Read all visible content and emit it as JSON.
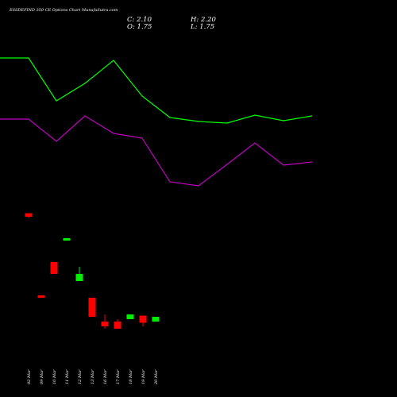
{
  "chart_data": {
    "type": "candlestick",
    "title": "ESSDEFIND 350 CE Options Chart MunafaSutra.com",
    "info": {
      "c": "C: 2.10",
      "h": "H: 2.20",
      "o": "O: 1.75",
      "l": "L: 1.75"
    },
    "dates": [
      "02 Mar",
      "09 Mar",
      "10 Mar",
      "11 Mar",
      "12 Mar",
      "13 Mar",
      "16 Mar",
      "17 Mar",
      "18 Mar",
      "19 Mar",
      "20 Mar"
    ],
    "candles": [
      {
        "open": 20.5,
        "high": 20.5,
        "low": 18.5,
        "close": 19.0
      },
      {
        "open": -14.0,
        "high": -14.0,
        "low": -15.0,
        "close": -15.0
      },
      {
        "open": 0.0,
        "high": 0.0,
        "low": -5.0,
        "close": -5.0
      },
      {
        "open": 9.0,
        "high": 10.0,
        "low": 9.0,
        "close": 10.0
      },
      {
        "open": -8.0,
        "high": -2.0,
        "low": -8.0,
        "close": -5.0
      },
      {
        "open": -15.0,
        "high": -15.0,
        "low": -23.0,
        "close": -23.0
      },
      {
        "open": -25.0,
        "high": -22.0,
        "low": -28.0,
        "close": -27.0
      },
      {
        "open": -25.0,
        "high": -24.0,
        "low": -28.0,
        "close": -28.0
      },
      {
        "open": -24.0,
        "high": -22.0,
        "low": -24.0,
        "close": -22.0
      },
      {
        "open": -22.5,
        "high": -22.5,
        "low": -27.0,
        "close": -25.5
      },
      {
        "open": -25.0,
        "high": -23.0,
        "low": -25.0,
        "close": -23.0
      }
    ],
    "series": [
      {
        "color": "#00ff00",
        "points": [
          [
            0,
            73
          ],
          [
            36,
            73
          ],
          [
            71,
            127
          ],
          [
            107,
            105
          ],
          [
            143,
            76
          ],
          [
            179,
            121
          ],
          [
            214,
            148
          ],
          [
            250,
            153
          ],
          [
            286,
            155
          ],
          [
            321,
            145
          ],
          [
            357,
            152
          ],
          [
            393,
            146
          ]
        ]
      },
      {
        "color": "#c000c0",
        "points": [
          [
            0,
            150
          ],
          [
            36,
            150
          ],
          [
            71,
            178
          ],
          [
            107,
            146
          ],
          [
            143,
            168
          ],
          [
            179,
            174
          ],
          [
            214,
            229
          ],
          [
            250,
            234
          ],
          [
            286,
            207
          ],
          [
            321,
            180
          ],
          [
            357,
            208
          ],
          [
            393,
            204
          ]
        ]
      }
    ],
    "colors": {
      "up": "#00ee00",
      "down": "#ff0000",
      "background": "#000000",
      "text": "#ffffff"
    }
  }
}
